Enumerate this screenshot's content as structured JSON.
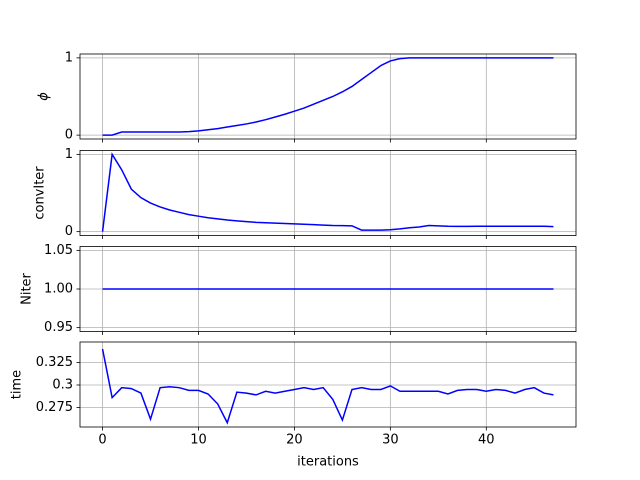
{
  "chart_data": [
    {
      "type": "line",
      "ylabel": "ϕ",
      "x": [
        0,
        1,
        2,
        3,
        4,
        5,
        6,
        7,
        8,
        9,
        10,
        11,
        12,
        13,
        14,
        15,
        16,
        17,
        18,
        19,
        20,
        21,
        22,
        23,
        24,
        25,
        26,
        27,
        28,
        29,
        30,
        31,
        32,
        33,
        34,
        35,
        36,
        37,
        38,
        39,
        40,
        41,
        42,
        43,
        44,
        45,
        46,
        47
      ],
      "series": [
        {
          "color": "#0000ff",
          "values": [
            0,
            0,
            0.04,
            0.04,
            0.04,
            0.04,
            0.04,
            0.04,
            0.04,
            0.045,
            0.055,
            0.07,
            0.085,
            0.105,
            0.125,
            0.145,
            0.17,
            0.2,
            0.235,
            0.27,
            0.31,
            0.35,
            0.4,
            0.45,
            0.5,
            0.56,
            0.63,
            0.72,
            0.81,
            0.9,
            0.96,
            0.99,
            1,
            1,
            1,
            1,
            1,
            1,
            1,
            1,
            1,
            1,
            1,
            1,
            1,
            1,
            1,
            1
          ]
        }
      ],
      "xlim": [
        -2.35,
        49.35
      ],
      "xticks": [
        0,
        10,
        20,
        30,
        40
      ],
      "ylim": [
        -0.05,
        1.05
      ],
      "yticks": [
        0,
        1
      ],
      "grid": true
    },
    {
      "type": "line",
      "ylabel": "convIter",
      "x": [
        0,
        1,
        2,
        3,
        4,
        5,
        6,
        7,
        8,
        9,
        10,
        11,
        12,
        13,
        14,
        15,
        16,
        17,
        18,
        19,
        20,
        21,
        22,
        23,
        24,
        25,
        26,
        27,
        28,
        29,
        30,
        31,
        32,
        33,
        34,
        35,
        36,
        37,
        38,
        39,
        40,
        41,
        42,
        43,
        44,
        45,
        46,
        47
      ],
      "series": [
        {
          "color": "#0000ff",
          "values": [
            0,
            1,
            0.8,
            0.55,
            0.44,
            0.37,
            0.32,
            0.28,
            0.25,
            0.22,
            0.2,
            0.18,
            0.165,
            0.15,
            0.14,
            0.13,
            0.12,
            0.115,
            0.11,
            0.105,
            0.1,
            0.095,
            0.09,
            0.085,
            0.08,
            0.078,
            0.075,
            0.02,
            0.02,
            0.02,
            0.025,
            0.035,
            0.05,
            0.06,
            0.08,
            0.075,
            0.07,
            0.068,
            0.068,
            0.07,
            0.07,
            0.07,
            0.07,
            0.07,
            0.07,
            0.07,
            0.07,
            0.065
          ]
        }
      ],
      "xlim": [
        -2.35,
        49.35
      ],
      "xticks": [
        0,
        10,
        20,
        30,
        40
      ],
      "ylim": [
        -0.05,
        1.05
      ],
      "yticks": [
        0,
        1
      ],
      "grid": true
    },
    {
      "type": "line",
      "ylabel": "Niter",
      "x": [
        0,
        1,
        2,
        3,
        4,
        5,
        6,
        7,
        8,
        9,
        10,
        11,
        12,
        13,
        14,
        15,
        16,
        17,
        18,
        19,
        20,
        21,
        22,
        23,
        24,
        25,
        26,
        27,
        28,
        29,
        30,
        31,
        32,
        33,
        34,
        35,
        36,
        37,
        38,
        39,
        40,
        41,
        42,
        43,
        44,
        45,
        46,
        47
      ],
      "series": [
        {
          "color": "#0000ff",
          "values": [
            1,
            1,
            1,
            1,
            1,
            1,
            1,
            1,
            1,
            1,
            1,
            1,
            1,
            1,
            1,
            1,
            1,
            1,
            1,
            1,
            1,
            1,
            1,
            1,
            1,
            1,
            1,
            1,
            1,
            1,
            1,
            1,
            1,
            1,
            1,
            1,
            1,
            1,
            1,
            1,
            1,
            1,
            1,
            1,
            1,
            1,
            1,
            1
          ]
        }
      ],
      "xlim": [
        -2.35,
        49.35
      ],
      "xticks": [
        0,
        10,
        20,
        30,
        40
      ],
      "ylim": [
        0.945,
        1.055
      ],
      "yticks": [
        {
          "value": 0.95,
          "label": "0.95"
        },
        {
          "value": 1,
          "label": "1.00"
        },
        {
          "value": 1.05,
          "label": "1.05"
        }
      ],
      "grid": true
    },
    {
      "type": "line",
      "ylabel": "time",
      "xlabel": "iterations",
      "x": [
        0,
        1,
        2,
        3,
        4,
        5,
        6,
        7,
        8,
        9,
        10,
        11,
        12,
        13,
        14,
        15,
        16,
        17,
        18,
        19,
        20,
        21,
        22,
        23,
        24,
        25,
        26,
        27,
        28,
        29,
        30,
        31,
        32,
        33,
        34,
        35,
        36,
        37,
        38,
        39,
        40,
        41,
        42,
        43,
        44,
        45,
        46,
        47
      ],
      "series": [
        {
          "color": "#0000ff",
          "values": [
            0.34,
            0.286,
            0.297,
            0.296,
            0.291,
            0.262,
            0.297,
            0.298,
            0.297,
            0.294,
            0.294,
            0.29,
            0.279,
            0.258,
            0.292,
            0.291,
            0.289,
            0.293,
            0.291,
            0.293,
            0.295,
            0.297,
            0.295,
            0.297,
            0.284,
            0.261,
            0.295,
            0.297,
            0.295,
            0.295,
            0.299,
            0.293,
            0.293,
            0.293,
            0.293,
            0.293,
            0.29,
            0.294,
            0.295,
            0.295,
            0.293,
            0.295,
            0.294,
            0.291,
            0.295,
            0.297,
            0.291,
            0.289
          ]
        }
      ],
      "xlim": [
        -2.35,
        49.35
      ],
      "xticks": [
        0,
        10,
        20,
        30,
        40
      ],
      "ylim": [
        0.2533,
        0.3478
      ],
      "yticks": [
        {
          "value": 0.275,
          "label": "0.275"
        },
        0.3,
        {
          "value": 0.325,
          "label": "0.325"
        }
      ],
      "grid": true
    }
  ]
}
